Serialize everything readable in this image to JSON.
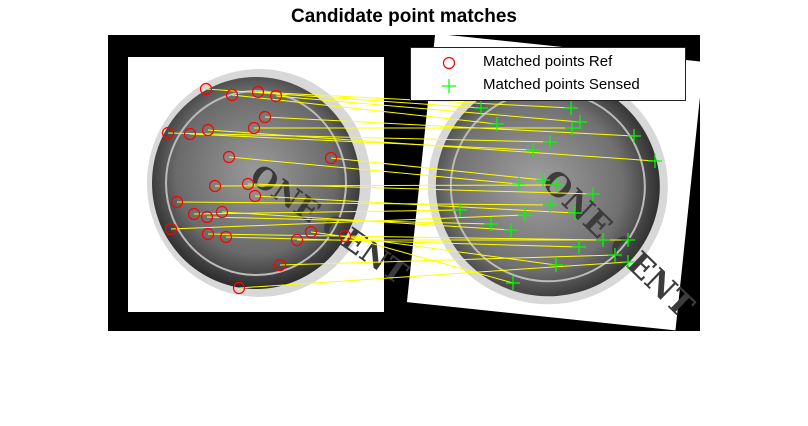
{
  "title": "Candidate point matches",
  "legend": {
    "ref_label": "Matched points Ref",
    "sensed_label": "Matched points Sensed"
  },
  "colors": {
    "ref_marker": "#ff0000",
    "sensed_marker": "#00ff00",
    "match_line": "#ffff00",
    "background": "#000000"
  },
  "images": {
    "ref": {
      "content": "grayscale photo of coin, front view",
      "lettering": "ONE CENT"
    },
    "sensed": {
      "content": "grayscale photo of same coin, rotated and scaled",
      "lettering": "ONE CENT"
    }
  }
}
